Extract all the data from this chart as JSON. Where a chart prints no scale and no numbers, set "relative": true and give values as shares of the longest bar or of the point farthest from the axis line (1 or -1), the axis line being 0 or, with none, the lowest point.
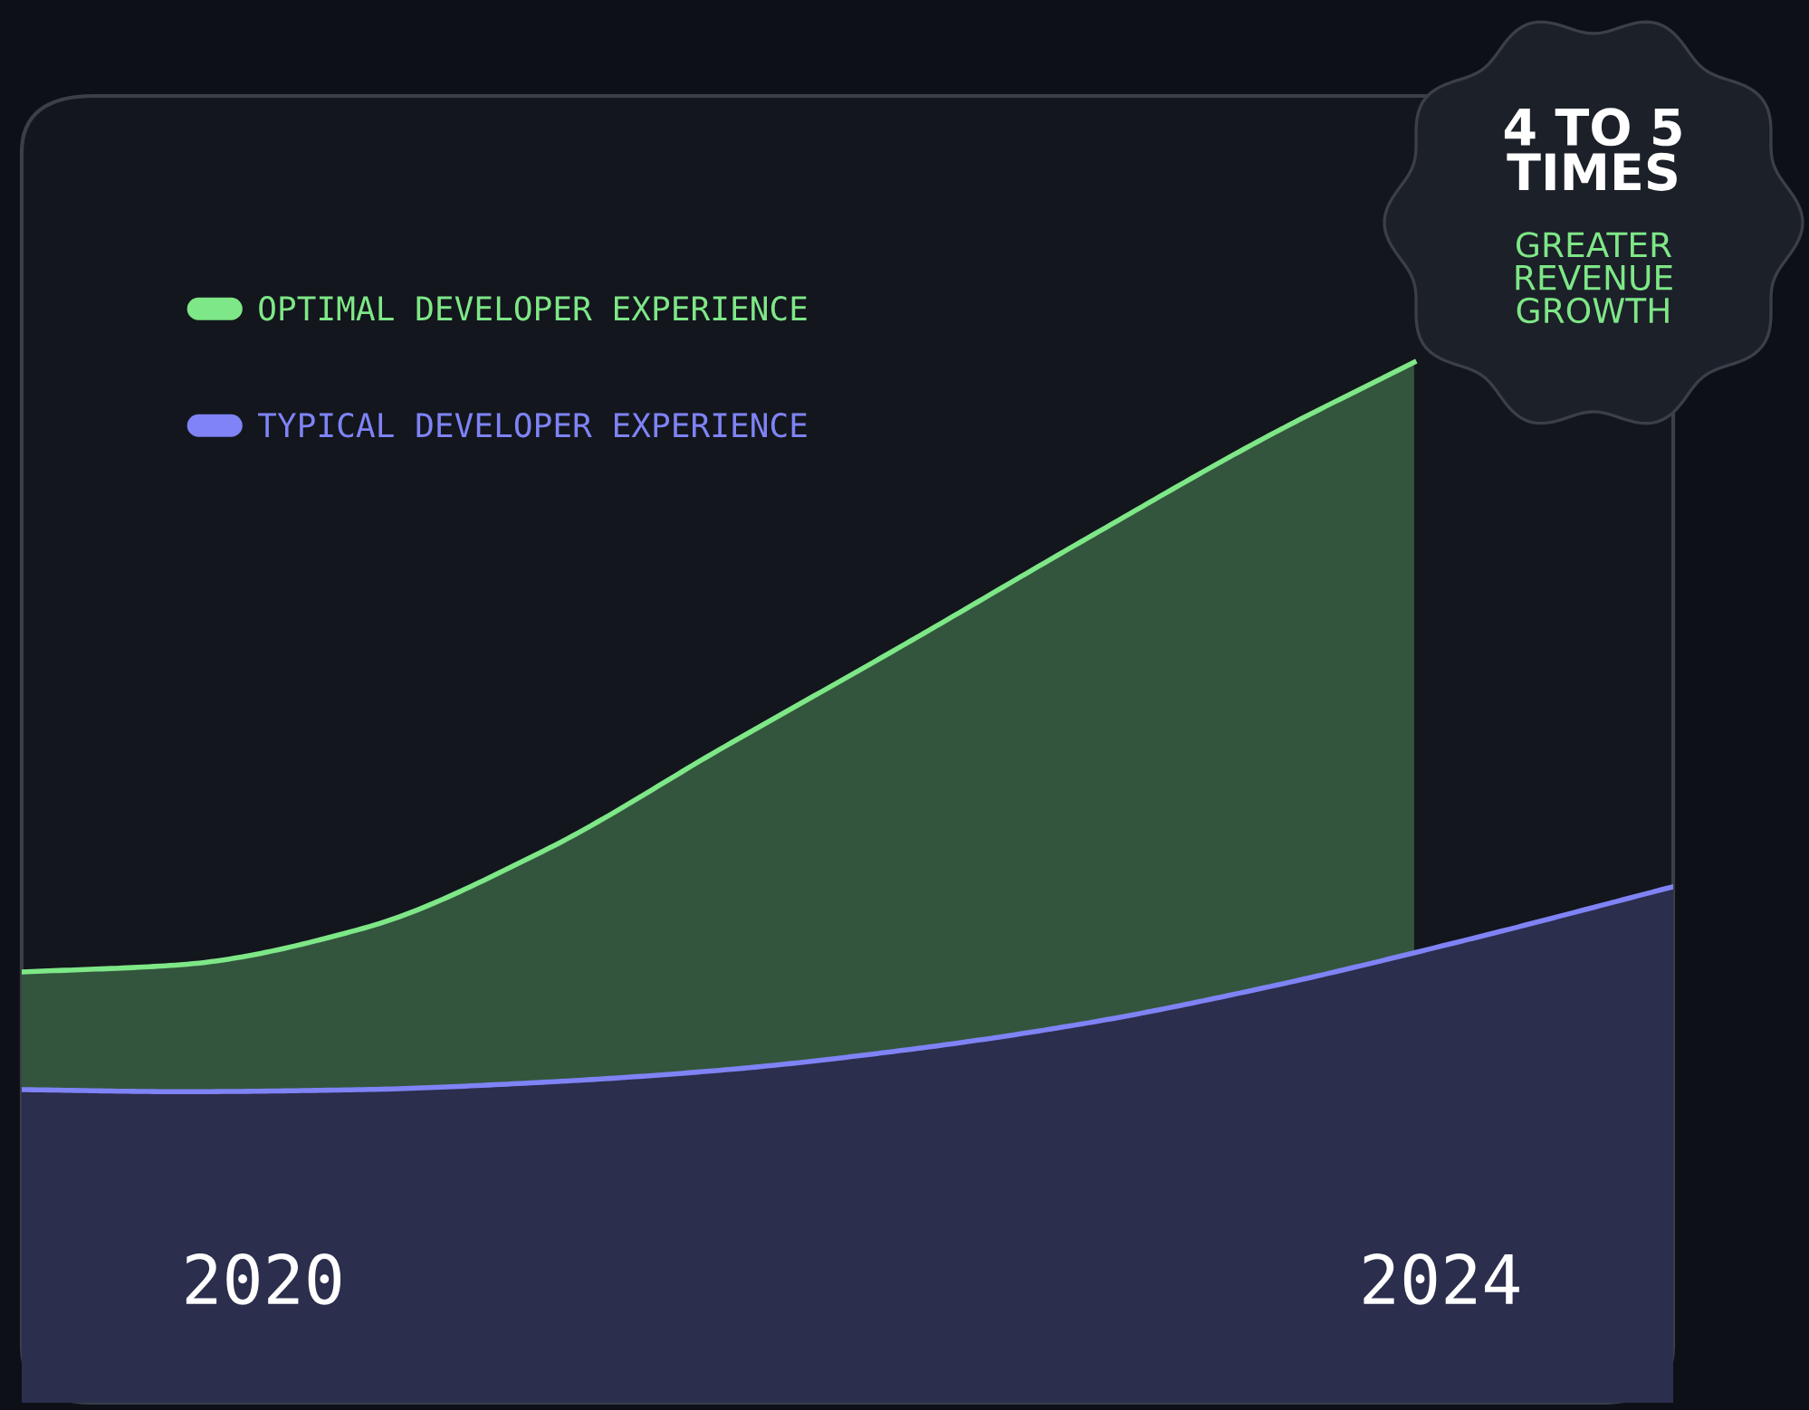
{
  "chart_data": {
    "type": "area",
    "relative": true,
    "xlim": [
      2019.18,
      2024.79
    ],
    "xticks": [
      2020,
      2024
    ],
    "series": [
      {
        "name": "OPTIMAL DEVELOPER EXPERIENCE",
        "color": "#7ee787",
        "x": [
          2019.18,
          2019.72,
          2020.34,
          2020.95,
          2021.57,
          2022.18,
          2022.8,
          2023.42,
          2023.91
        ],
        "values": [
          0.414,
          0.421,
          0.456,
          0.53,
          0.631,
          0.729,
          0.831,
          0.93,
          1.0
        ]
      },
      {
        "name": "TYPICAL DEVELOPER EXPERIENCE",
        "color": "#7f83f5",
        "x": [
          2019.18,
          2019.72,
          2020.34,
          2020.95,
          2021.57,
          2022.18,
          2022.8,
          2023.42,
          2024.09,
          2024.79
        ],
        "values": [
          0.301,
          0.299,
          0.301,
          0.308,
          0.32,
          0.339,
          0.365,
          0.4,
          0.445,
          0.496
        ]
      }
    ],
    "legend": "top left",
    "annotations": [
      "4 TO 5 TIMES",
      "GREATER REVENUE GROWTH"
    ]
  }
}
